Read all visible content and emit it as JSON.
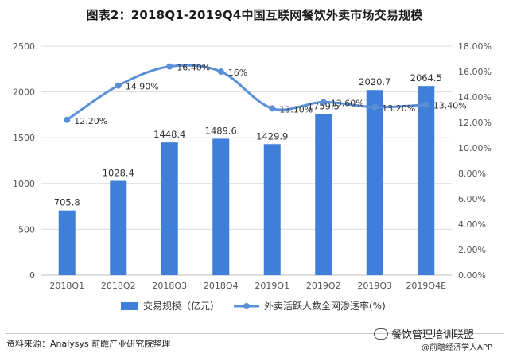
{
  "title": "图表2：2018Q1-2019Q4中国互联网餐饮外卖市场交易规模",
  "source": "资料来源：Analysys 前瞻产业研究院整理",
  "watermark": {
    "brand": "餐饮管理培训联盟",
    "sub": "@前瞻经济学人APP"
  },
  "chart_data": {
    "type": "bar",
    "categories": [
      "2018Q1",
      "2018Q2",
      "2018Q3",
      "2018Q4",
      "2019Q1",
      "2019Q2",
      "2019Q3",
      "2019Q4E"
    ],
    "series": [
      {
        "name": "交易规模（亿元）",
        "type": "bar",
        "axis": "left",
        "values": [
          705.8,
          1028.4,
          1448.4,
          1489.6,
          1429.9,
          1759.5,
          2020.7,
          2064.5
        ],
        "labels": [
          "705.8",
          "1028.4",
          "1448.4",
          "1489.6",
          "1429.9",
          "1759.5",
          "2020.7",
          "2064.5"
        ],
        "color": "#3f7fd9"
      },
      {
        "name": "外卖活跃人数全网渗透率(%)",
        "type": "line",
        "axis": "right",
        "values": [
          12.2,
          14.9,
          16.4,
          16.0,
          13.1,
          13.6,
          13.2,
          13.4
        ],
        "labels": [
          "12.20%",
          "14.90%",
          "16.40%",
          "16%",
          "13.10%",
          "13.60%",
          "13.20%",
          "13.40%"
        ],
        "color": "#5b8fd8"
      }
    ],
    "y_left": {
      "min": 0,
      "max": 2500,
      "ticks": [
        "0",
        "500",
        "1000",
        "1500",
        "2000",
        "2500"
      ]
    },
    "y_right": {
      "min": 0,
      "max": 18,
      "ticks": [
        "0.00%",
        "2.00%",
        "4.00%",
        "6.00%",
        "8.00%",
        "10.00%",
        "12.00%",
        "14.00%",
        "16.00%",
        "18.00%"
      ]
    },
    "grid": true,
    "legend_position": "bottom"
  }
}
